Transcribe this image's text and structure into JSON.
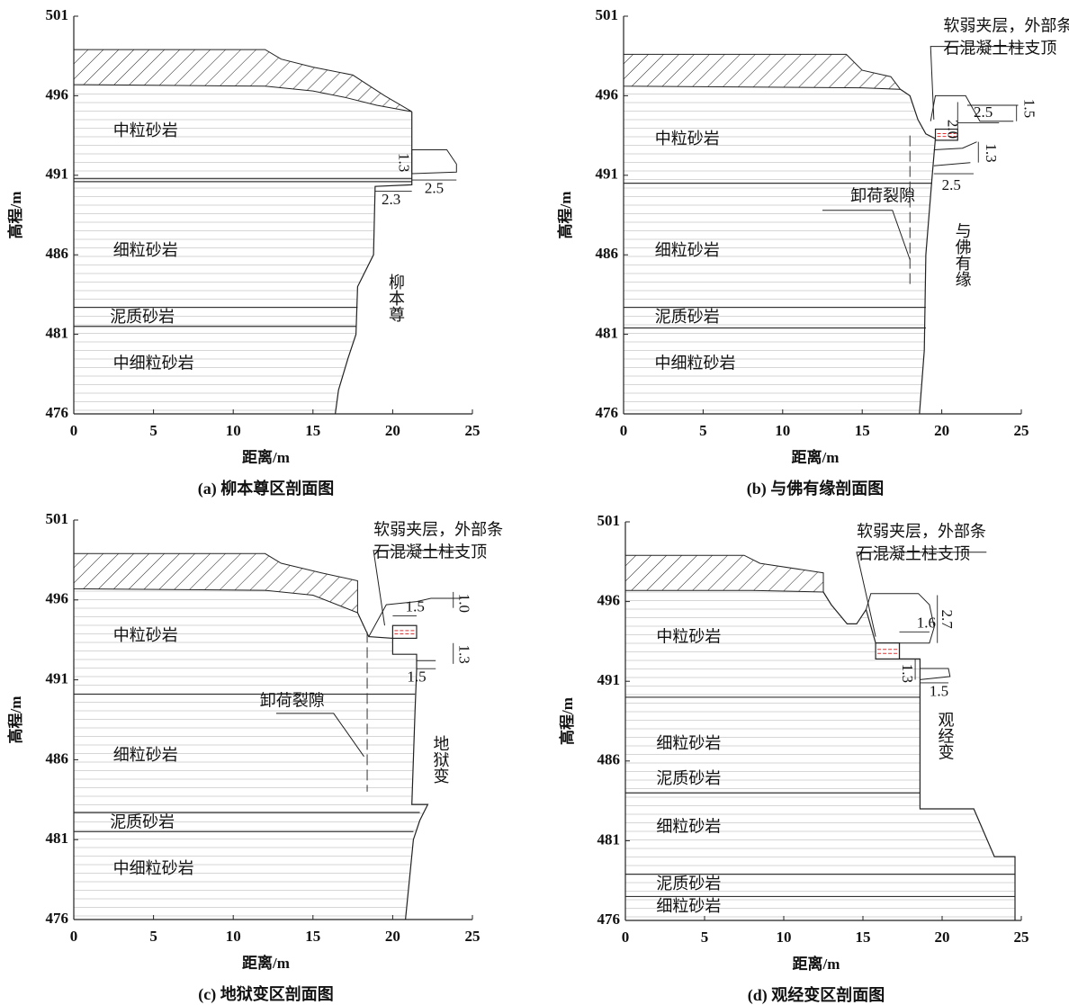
{
  "chart_data": [
    {
      "type": "section",
      "title": "(a) 柳本尊区剖面图",
      "xlabel": "距离/m",
      "ylabel": "高程/m",
      "xlim": [
        0,
        25
      ],
      "xticks": [
        0,
        5,
        10,
        15,
        20,
        25
      ],
      "ylim": [
        476,
        501
      ],
      "yticks": [
        476,
        481,
        486,
        491,
        496,
        501
      ],
      "layers": [
        "中粒砂岩",
        "细粒砂岩",
        "泥质砂岩",
        "中细粒砂岩"
      ],
      "notes": [
        "柳本尊"
      ],
      "dims": [
        "1.3",
        "2.5",
        "2.3"
      ]
    },
    {
      "type": "section",
      "title": "(b) 与佛有缘剖面图",
      "xlabel": "距离/m",
      "ylabel": "高程/m",
      "xlim": [
        0,
        25
      ],
      "xticks": [
        0,
        5,
        10,
        15,
        20,
        25
      ],
      "ylim": [
        476,
        501
      ],
      "yticks": [
        476,
        481,
        486,
        491,
        496,
        501
      ],
      "layers": [
        "中粒砂岩",
        "细粒砂岩",
        "泥质砂岩",
        "中细粒砂岩"
      ],
      "notes": [
        "软弱夹层，外部条",
        "石混凝土柱支顶",
        "卸荷裂隙",
        "与佛有缘"
      ],
      "dims": [
        "2.0",
        "2.5",
        "1.5",
        "1.3",
        "2.5"
      ]
    },
    {
      "type": "section",
      "title": "(c) 地狱变区剖面图",
      "xlabel": "距离/m",
      "ylabel": "高程/m",
      "xlim": [
        0,
        25
      ],
      "xticks": [
        0,
        5,
        10,
        15,
        20,
        25
      ],
      "ylim": [
        476,
        501
      ],
      "yticks": [
        476,
        481,
        486,
        491,
        496,
        501
      ],
      "layers": [
        "中粒砂岩",
        "细粒砂岩",
        "泥质砂岩",
        "中细粒砂岩"
      ],
      "notes": [
        "软弱夹层，外部条",
        "石混凝土柱支顶",
        "卸荷裂隙",
        "地狱变"
      ],
      "dims": [
        "1.5",
        "1.0",
        "1.3",
        "1.5"
      ]
    },
    {
      "type": "section",
      "title": "(d) 观经变区剖面图",
      "xlabel": "距离/m",
      "ylabel": "高程/m",
      "xlim": [
        0,
        25
      ],
      "xticks": [
        0,
        5,
        10,
        15,
        20,
        25
      ],
      "ylim": [
        476,
        501
      ],
      "yticks": [
        476,
        481,
        486,
        491,
        496,
        501
      ],
      "layers": [
        "中粒砂岩",
        "细粒砂岩",
        "泥质砂岩",
        "细粒砂岩",
        "泥质砂岩",
        "细粒砂岩"
      ],
      "notes": [
        "软弱夹层，外部条",
        "石混凝土柱支顶",
        "观经变"
      ],
      "dims": [
        "1.6",
        "2.7",
        "1.3",
        "1.5"
      ]
    }
  ]
}
